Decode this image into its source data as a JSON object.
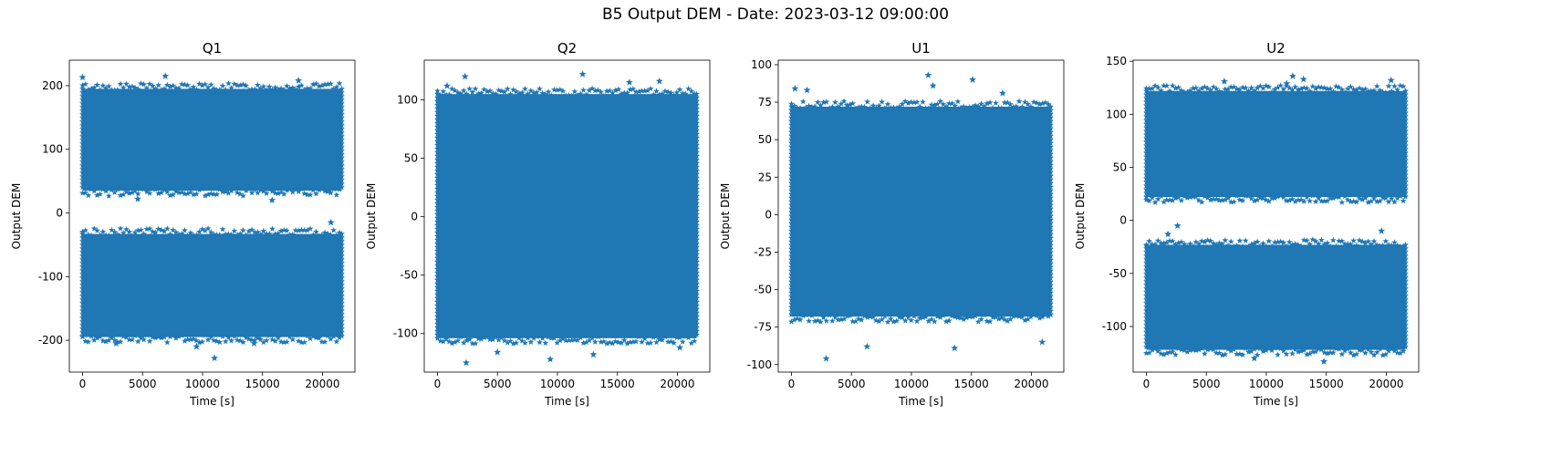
{
  "figure": {
    "title": "B5 Output DEM - Date: 2023-03-12 09:00:00",
    "marker_color": "#1f77b4",
    "marker": "star"
  },
  "chart_data": [
    {
      "type": "scatter",
      "title": "Q1",
      "xlabel": "Time [s]",
      "ylabel": "Output DEM",
      "xlim": [
        -1100,
        22700
      ],
      "ylim": [
        -250,
        240
      ],
      "xticks": [
        0,
        5000,
        10000,
        15000,
        20000
      ],
      "yticks": [
        -200,
        -100,
        0,
        100,
        200
      ],
      "grid": false,
      "x_range": [
        0,
        21600
      ],
      "bands": [
        {
          "low": 35,
          "high": 195
        },
        {
          "low": -195,
          "high": -33
        }
      ],
      "outliers": [
        [
          0,
          213
        ],
        [
          6900,
          215
        ],
        [
          11000,
          -228
        ],
        [
          20700,
          -15
        ],
        [
          15800,
          20
        ],
        [
          4600,
          22
        ],
        [
          9500,
          -210
        ],
        [
          2800,
          -205
        ],
        [
          14300,
          -205
        ],
        [
          18000,
          208
        ]
      ]
    },
    {
      "type": "scatter",
      "title": "Q2",
      "xlabel": "Time [s]",
      "ylabel": "Output DEM",
      "xlim": [
        -1100,
        22700
      ],
      "ylim": [
        -133,
        134
      ],
      "xticks": [
        0,
        5000,
        10000,
        15000,
        20000
      ],
      "yticks": [
        -100,
        -50,
        0,
        50,
        100
      ],
      "grid": false,
      "x_range": [
        0,
        21600
      ],
      "bands": [
        {
          "low": -104,
          "high": 105
        }
      ],
      "outliers": [
        [
          2400,
          -125
        ],
        [
          9400,
          -122
        ],
        [
          12100,
          122
        ],
        [
          2300,
          120
        ],
        [
          13000,
          -118
        ],
        [
          18500,
          116
        ],
        [
          5000,
          -116
        ],
        [
          16000,
          115
        ],
        [
          800,
          112
        ],
        [
          20200,
          -112
        ]
      ]
    },
    {
      "type": "scatter",
      "title": "U1",
      "xlabel": "Time [s]",
      "ylabel": "Output DEM",
      "xlim": [
        -1100,
        22700
      ],
      "ylim": [
        -105,
        103
      ],
      "xticks": [
        0,
        5000,
        10000,
        15000,
        20000
      ],
      "yticks": [
        -100,
        -75,
        -50,
        -25,
        0,
        25,
        50,
        75,
        100
      ],
      "grid": false,
      "x_range": [
        0,
        21600
      ],
      "bands": [
        {
          "low": -68,
          "high": 72
        }
      ],
      "outliers": [
        [
          11400,
          93
        ],
        [
          15100,
          90
        ],
        [
          2900,
          -96
        ],
        [
          11800,
          86
        ],
        [
          300,
          84
        ],
        [
          13600,
          -89
        ],
        [
          1300,
          83
        ],
        [
          6300,
          -88
        ],
        [
          17600,
          81
        ],
        [
          20900,
          -85
        ]
      ]
    },
    {
      "type": "scatter",
      "title": "U2",
      "xlabel": "Time [s]",
      "ylabel": "Output DEM",
      "xlim": [
        -1100,
        22700
      ],
      "ylim": [
        -143,
        151
      ],
      "xticks": [
        0,
        5000,
        10000,
        15000,
        20000
      ],
      "yticks": [
        -100,
        -50,
        0,
        50,
        100,
        150
      ],
      "grid": false,
      "x_range": [
        0,
        21600
      ],
      "bands": [
        {
          "low": 22,
          "high": 122
        },
        {
          "low": -122,
          "high": -23
        }
      ],
      "outliers": [
        [
          12200,
          136
        ],
        [
          13100,
          133
        ],
        [
          20400,
          132
        ],
        [
          11700,
          129
        ],
        [
          2600,
          -5
        ],
        [
          1800,
          -13
        ],
        [
          19600,
          -10
        ],
        [
          14800,
          -133
        ],
        [
          6500,
          131
        ],
        [
          9000,
          -130
        ]
      ]
    }
  ]
}
